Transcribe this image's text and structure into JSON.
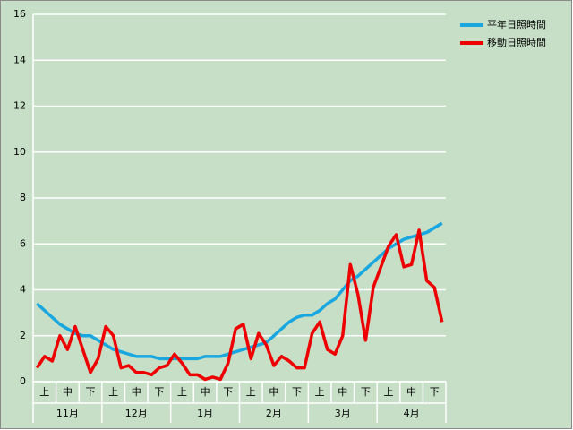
{
  "chart_data": {
    "type": "line",
    "categories": [
      null,
      "上",
      null,
      null,
      "中",
      null,
      null,
      "下",
      null,
      null,
      "上",
      null,
      null,
      "中",
      null,
      null,
      "下",
      null,
      null,
      "上",
      null,
      null,
      "中",
      null,
      null,
      "下",
      null,
      null,
      "上",
      null,
      null,
      "中",
      null,
      null,
      "下",
      null,
      null,
      "上",
      null,
      null,
      "中",
      null,
      null,
      "下",
      null,
      null,
      "上",
      null,
      null,
      "中",
      null,
      null,
      "下",
      null
    ],
    "month_labels": [
      "11月",
      "12月",
      "1月",
      "2月",
      "3月",
      "4月"
    ],
    "series": [
      {
        "name": "平年日照時間",
        "color": "#1aa7e0",
        "values": [
          3.4,
          3.1,
          2.8,
          2.5,
          2.3,
          2.1,
          2.0,
          2.0,
          1.8,
          1.6,
          1.4,
          1.3,
          1.2,
          1.1,
          1.1,
          1.1,
          1.0,
          1.0,
          1.0,
          1.0,
          1.0,
          1.0,
          1.1,
          1.1,
          1.1,
          1.2,
          1.3,
          1.4,
          1.5,
          1.6,
          1.7,
          2.0,
          2.3,
          2.6,
          2.8,
          2.9,
          2.9,
          3.1,
          3.4,
          3.6,
          4.0,
          4.4,
          4.6,
          4.9,
          5.2,
          5.5,
          5.8,
          6.0,
          6.2,
          6.3,
          6.4,
          6.5,
          6.7,
          6.9
        ]
      },
      {
        "name": "移動日照時間",
        "color": "#ee0000",
        "values": [
          0.6,
          1.1,
          0.9,
          2.0,
          1.4,
          2.4,
          1.4,
          0.4,
          1.0,
          2.4,
          2.0,
          0.6,
          0.7,
          0.4,
          0.4,
          0.3,
          0.6,
          0.7,
          1.2,
          0.8,
          0.3,
          0.3,
          0.1,
          0.2,
          0.1,
          0.8,
          2.3,
          2.5,
          1.0,
          2.1,
          1.6,
          0.7,
          1.1,
          0.9,
          0.6,
          0.6,
          2.1,
          2.6,
          1.4,
          1.2,
          2.0,
          5.1,
          3.8,
          1.8,
          4.1,
          5.0,
          5.9,
          6.4,
          5.0,
          5.1,
          6.6,
          4.4,
          4.1,
          2.6
        ]
      }
    ],
    "ylim": [
      0,
      16
    ],
    "yticks": [
      0,
      2,
      4,
      6,
      8,
      10,
      12,
      14,
      16
    ],
    "grid": true
  }
}
